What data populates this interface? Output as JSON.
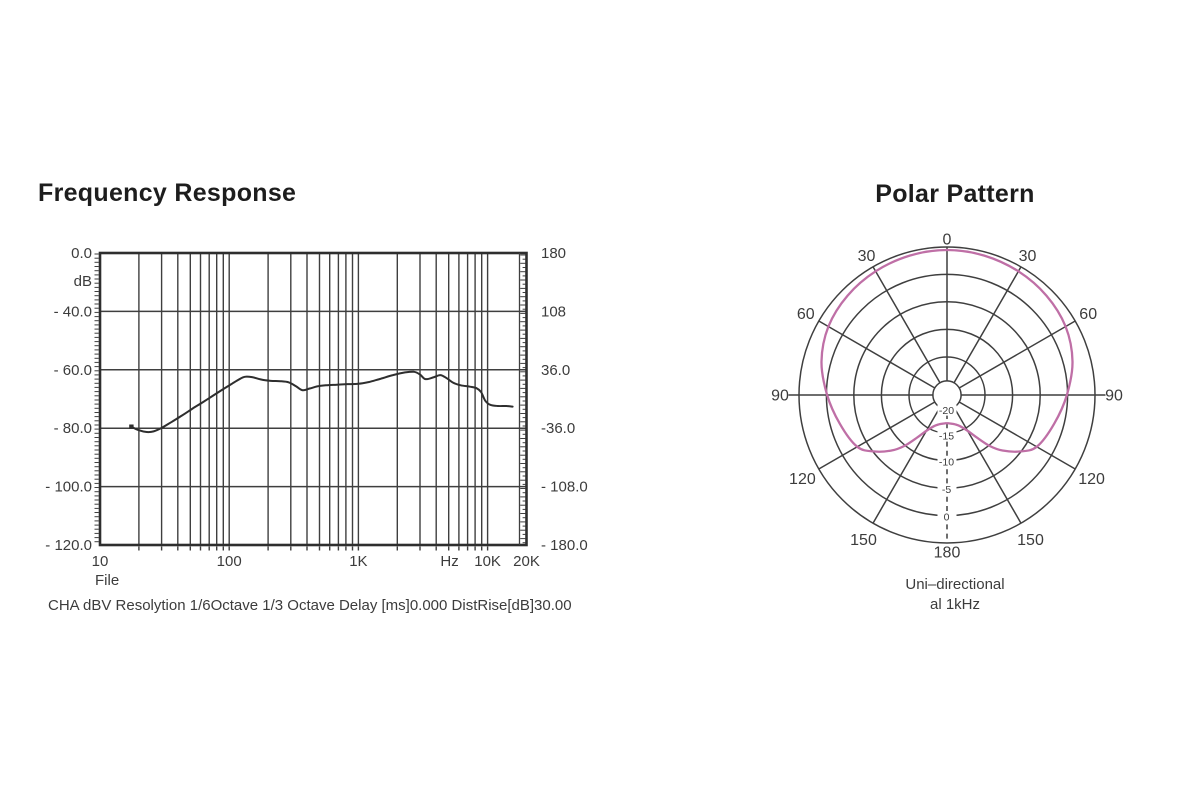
{
  "page": {
    "background": "#ffffff",
    "grid_color": "#3f3f3f",
    "border_color": "#2e2e2e",
    "text_color": "#3c3c3c"
  },
  "frequency_response": {
    "title": "Frequency Response",
    "y_left_unit": "dB",
    "x_sub_label": "File",
    "footer": "CHA dBV Resolytion 1/6Octave 1/3 Octave Delay [ms]0.000 DistRise[dB]30.00"
  },
  "polar_pattern": {
    "title": "Polar Pattern",
    "caption_line1": "Uni–directional",
    "caption_line2": "al 1kHz",
    "curve_color": "#bf6fa6"
  },
  "chart_data": [
    {
      "type": "line",
      "title": "Frequency Response",
      "x_scale": "log",
      "xlim": [
        10,
        20000
      ],
      "x_unit": "Hz",
      "grid": true,
      "x_tick_labels": [
        {
          "text": "10",
          "f": 10
        },
        {
          "text": "100",
          "f": 100
        },
        {
          "text": "1K",
          "f": 1000
        },
        {
          "text": "Hz",
          "f": 5080
        },
        {
          "text": "10K",
          "f": 10000
        },
        {
          "text": "20K",
          "f": 20000
        }
      ],
      "x_sub_label": "File",
      "y_left_unit": "dB",
      "y_left_ticks": [
        {
          "text": "0.0",
          "value": 0
        },
        {
          "text": "- 40.0",
          "value": -40
        },
        {
          "text": "- 60.0",
          "value": -60
        },
        {
          "text": "- 80.0",
          "value": -80
        },
        {
          "text": "- 100.0",
          "value": -100
        },
        {
          "text": "- 120.0",
          "value": -120
        }
      ],
      "y_right_ticks": [
        {
          "text": "180",
          "value": 180
        },
        {
          "text": "108",
          "value": 108
        },
        {
          "text": "36.0",
          "value": 36
        },
        {
          "text": "-36.0",
          "value": -36
        },
        {
          "text": "- 108.0",
          "value": -108
        },
        {
          "text": "- 180.0",
          "value": -180
        }
      ],
      "series": [
        {
          "name": "CHA dBV",
          "color": "#2e2e2e",
          "points_hz_db": [
            [
              17.5,
              -79.5
            ],
            [
              20,
              -80.7
            ],
            [
              23,
              -81.3
            ],
            [
              26,
              -81.1
            ],
            [
              30,
              -79.9
            ],
            [
              36,
              -77.8
            ],
            [
              43,
              -75.7
            ],
            [
              52,
              -73.3
            ],
            [
              62,
              -71.2
            ],
            [
              74,
              -69.0
            ],
            [
              88,
              -66.9
            ],
            [
              103,
              -65.0
            ],
            [
              118,
              -63.4
            ],
            [
              132,
              -62.4
            ],
            [
              150,
              -62.5
            ],
            [
              175,
              -63.3
            ],
            [
              210,
              -63.8
            ],
            [
              250,
              -63.9
            ],
            [
              290,
              -64.3
            ],
            [
              330,
              -65.7
            ],
            [
              370,
              -67.0
            ],
            [
              420,
              -66.4
            ],
            [
              480,
              -65.7
            ],
            [
              560,
              -65.3
            ],
            [
              680,
              -65.1
            ],
            [
              820,
              -64.9
            ],
            [
              1000,
              -64.8
            ],
            [
              1200,
              -64.2
            ],
            [
              1500,
              -63.0
            ],
            [
              1850,
              -61.8
            ],
            [
              2300,
              -60.9
            ],
            [
              2700,
              -60.7
            ],
            [
              3000,
              -61.6
            ],
            [
              3300,
              -63.2
            ],
            [
              3800,
              -62.6
            ],
            [
              4300,
              -61.8
            ],
            [
              4800,
              -62.8
            ],
            [
              5400,
              -64.4
            ],
            [
              6200,
              -65.3
            ],
            [
              7300,
              -65.8
            ],
            [
              8200,
              -66.3
            ],
            [
              8900,
              -67.6
            ],
            [
              9600,
              -70.6
            ],
            [
              10500,
              -72.0
            ],
            [
              12000,
              -72.4
            ],
            [
              14000,
              -72.4
            ],
            [
              15600,
              -72.6
            ]
          ]
        }
      ]
    },
    {
      "type": "polar",
      "title": "Polar Pattern",
      "caption": "Uni–directional al 1kHz",
      "curve_color": "#bf6fa6",
      "rings_ratio": [
        1,
        0.815,
        0.63,
        0.443,
        0.257
      ],
      "center_ring_ratio": 0.095,
      "spoke_step_deg": 30,
      "angle_tick_labels": [
        {
          "text": "0",
          "deg": 0
        },
        {
          "text": "30",
          "deg": -30
        },
        {
          "text": "30",
          "deg": 30
        },
        {
          "text": "60",
          "deg": -60
        },
        {
          "text": "60",
          "deg": 60
        },
        {
          "text": "90",
          "deg": -90
        },
        {
          "text": "90",
          "deg": 90
        },
        {
          "text": "120",
          "deg": -120
        },
        {
          "text": "120",
          "deg": 120
        },
        {
          "text": "150",
          "deg": -150
        },
        {
          "text": "150",
          "deg": 150
        },
        {
          "text": "180",
          "deg": 180
        }
      ],
      "radial_db_labels": [
        {
          "text": "-20",
          "ratio": 0.095
        },
        {
          "text": "-15",
          "ratio": 0.27
        },
        {
          "text": "-10",
          "ratio": 0.443
        },
        {
          "text": "-5",
          "ratio": 0.63
        },
        {
          "text": "0",
          "ratio": 0.815
        }
      ],
      "samples_deg_ratio": [
        [
          0,
          0.98
        ],
        [
          15,
          0.975
        ],
        [
          30,
          0.965
        ],
        [
          45,
          0.95
        ],
        [
          60,
          0.925
        ],
        [
          75,
          0.878
        ],
        [
          90,
          0.81
        ],
        [
          105,
          0.75
        ],
        [
          120,
          0.7
        ],
        [
          128,
          0.62
        ],
        [
          135,
          0.53
        ],
        [
          140,
          0.45
        ],
        [
          145,
          0.35
        ],
        [
          150,
          0.28
        ],
        [
          157,
          0.23
        ],
        [
          165,
          0.205
        ],
        [
          172,
          0.195
        ],
        [
          180,
          0.19
        ]
      ]
    }
  ]
}
